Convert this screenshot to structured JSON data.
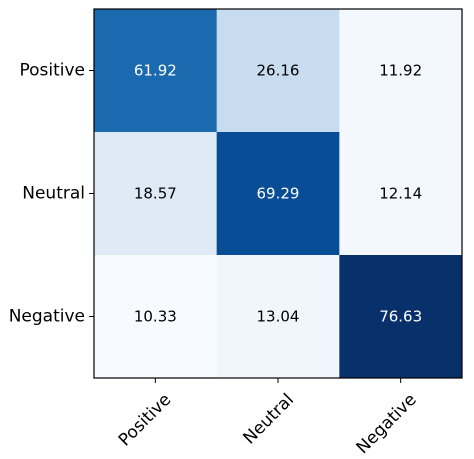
{
  "chart_data": {
    "type": "heatmap",
    "title": "",
    "xlabel": "",
    "ylabel": "",
    "row_labels": [
      "Positive",
      "Neutral",
      "Negative"
    ],
    "col_labels": [
      "Positive",
      "Neutral",
      "Negative"
    ],
    "values": [
      [
        61.92,
        26.16,
        11.92
      ],
      [
        18.57,
        69.29,
        12.14
      ],
      [
        10.33,
        13.04,
        76.63
      ]
    ],
    "value_labels": [
      [
        "61.92",
        "26.16",
        "11.92"
      ],
      [
        "18.57",
        "69.29",
        "12.14"
      ],
      [
        "10.33",
        "13.04",
        "76.63"
      ]
    ],
    "colormap": "Blues",
    "vmin": 10.33,
    "vmax": 76.63,
    "x_tick_rotation_deg": 45,
    "grid": false,
    "legend": "none"
  }
}
